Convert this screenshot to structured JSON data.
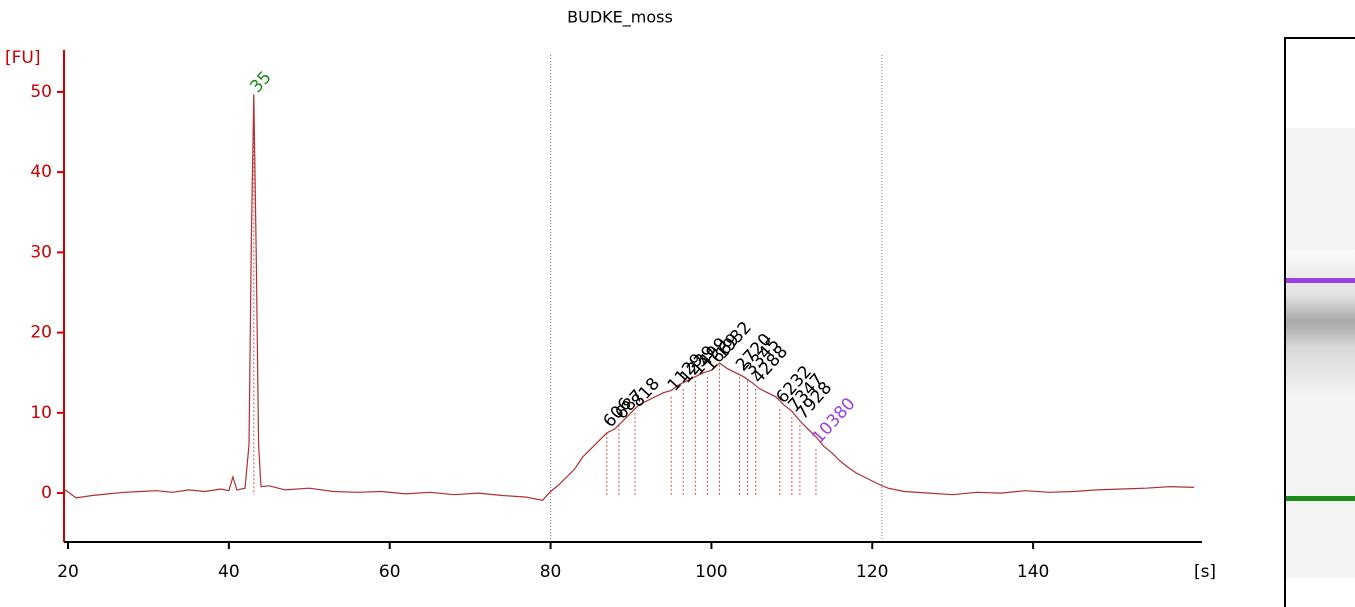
{
  "chart_data": {
    "type": "line",
    "title": "BUDKE_moss",
    "ylabel": "[FU]",
    "xlabel": "[s]",
    "color": "#b03030",
    "x": [
      19.5,
      21,
      23,
      25,
      27,
      29,
      31,
      33,
      35,
      37,
      39,
      40,
      40.5,
      41,
      42,
      42.5,
      42.8,
      43.1,
      43.4,
      43.7,
      44,
      45,
      47,
      50,
      53,
      56,
      59,
      62,
      65,
      68,
      71,
      74,
      77,
      79,
      80,
      81,
      82,
      83,
      84,
      85,
      86,
      87,
      88,
      89,
      90,
      91,
      92,
      93,
      94,
      95,
      96,
      97,
      98,
      99,
      100,
      101,
      102,
      103,
      104,
      105,
      106,
      107,
      108,
      109,
      110,
      111,
      112,
      113,
      114,
      115,
      116,
      117,
      118,
      119,
      120,
      121,
      122,
      124,
      127,
      130,
      133,
      136,
      139,
      142,
      145,
      148,
      151,
      154,
      157,
      160
    ],
    "values": [
      0.5,
      -0.6,
      -0.3,
      -0.1,
      0.1,
      0.2,
      0.3,
      0.1,
      0.4,
      0.2,
      0.5,
      0.3,
      2.0,
      0.4,
      0.6,
      6,
      32,
      49.7,
      30,
      6,
      0.8,
      0.9,
      0.4,
      0.6,
      0.2,
      0.1,
      0.2,
      -0.1,
      0.1,
      -0.2,
      0,
      -0.3,
      -0.5,
      -0.9,
      0.2,
      1,
      2,
      3,
      4.5,
      5.5,
      6.5,
      7.5,
      8,
      9,
      10,
      11,
      11.5,
      12,
      12.5,
      12.8,
      13.5,
      14,
      14.5,
      15,
      15.3,
      16.2,
      15.5,
      15,
      14.5,
      13.8,
      13,
      12.5,
      12,
      11,
      10.2,
      9,
      8,
      7,
      5.8,
      5,
      4,
      3.2,
      2.5,
      2,
      1.5,
      1,
      0.6,
      0.2,
      0,
      -0.2,
      0.1,
      0,
      0.3,
      0.1,
      0.2,
      0.4,
      0.5,
      0.6,
      0.8,
      0.7
    ],
    "xlim": [
      19.5,
      161
    ],
    "ylim": [
      -6.1,
      54.6
    ],
    "xticks": [
      20,
      40,
      60,
      80,
      100,
      120,
      140
    ],
    "yticks": [
      0,
      10,
      20,
      30,
      40,
      50
    ],
    "region": [
      80,
      121.2
    ],
    "annotations": [
      {
        "text": "35",
        "x": 43.1,
        "y": 50.2,
        "color": "#1a8a1a"
      },
      {
        "text": "606",
        "x": 87,
        "y": 8.5,
        "color": "#000000"
      },
      {
        "text": "687",
        "x": 88.5,
        "y": 9.5,
        "color": "#000000"
      },
      {
        "text": "818",
        "x": 90.5,
        "y": 11,
        "color": "#000000"
      },
      {
        "text": "1129",
        "x": 95,
        "y": 13,
        "color": "#000000"
      },
      {
        "text": "1239",
        "x": 96.5,
        "y": 14,
        "color": "#000000"
      },
      {
        "text": "1499",
        "x": 98,
        "y": 15,
        "color": "#000000"
      },
      {
        "text": "1669",
        "x": 99.5,
        "y": 15.5,
        "color": "#000000"
      },
      {
        "text": "1932",
        "x": 101,
        "y": 17,
        "color": "#000000"
      },
      {
        "text": "2720",
        "x": 103.5,
        "y": 15.5,
        "color": "#000000"
      },
      {
        "text": "3345",
        "x": 104.5,
        "y": 15,
        "color": "#000000"
      },
      {
        "text": "4288",
        "x": 105.5,
        "y": 14,
        "color": "#000000"
      },
      {
        "text": "6232",
        "x": 108.5,
        "y": 11.5,
        "color": "#000000"
      },
      {
        "text": "7347",
        "x": 110,
        "y": 10.5,
        "color": "#000000"
      },
      {
        "text": "7928",
        "x": 111,
        "y": 9.5,
        "color": "#000000"
      },
      {
        "text": "10380",
        "x": 113,
        "y": 6.5,
        "color": "#9b40e0"
      }
    ]
  }
}
